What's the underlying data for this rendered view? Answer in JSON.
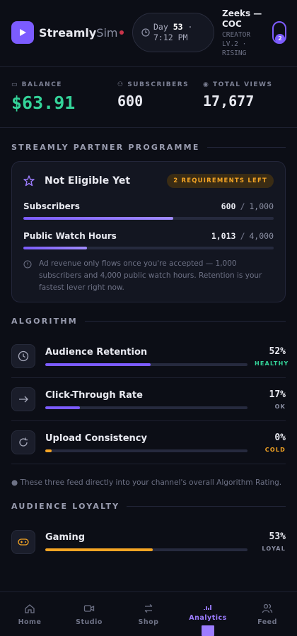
{
  "header": {
    "brand": "Streamly",
    "brand_suffix": "Sim",
    "day_label": "Day",
    "day": 53,
    "time": "· 7:12 PM",
    "user": "Zeeks — COC",
    "rank": "CREATOR LV.2 · RISING",
    "badge": 2
  },
  "stats": [
    {
      "label": "BALANCE",
      "value": "$63.91"
    },
    {
      "label": "SUBSCRIBERS",
      "value": 600
    },
    {
      "label": "TOTAL VIEWS",
      "value": "17,677"
    }
  ],
  "partner": {
    "title": "STREAMLY PARTNER PROGRAMME",
    "status": "Not Eligible Yet",
    "badge": "2 REQUIREMENTS LEFT",
    "requirements": [
      {
        "name": "Subscribers",
        "current": 600,
        "separator": "/",
        "target": {
          "value": 1000,
          "label": "1,000"
        }
      },
      {
        "name": "Public Watch Hours",
        "current": {
          "value": 1013,
          "label": "1,013"
        },
        "separator": "/",
        "target": {
          "value": 4000,
          "label": "4,000"
        }
      }
    ],
    "note": "Ad revenue only flows once you're accepted — 1,000 subscribers and 4,000 public watch hours. Retention is your fastest lever right now."
  },
  "algorithm": {
    "title": "ALGORITHM",
    "items": [
      {
        "name": "Audience Retention",
        "value": 52,
        "value_label": "52%",
        "status": "HEALTHY",
        "color": "#7c5cff",
        "status_color": "#34d399"
      },
      {
        "name": "Click-Through Rate",
        "value": 17,
        "value_label": "17%",
        "status": "OK",
        "color": "#7c5cff",
        "status_color": "#8b8fa3"
      },
      {
        "name": "Upload Consistency",
        "value": 0,
        "value_label": "0%",
        "status": "COLD",
        "color": "#f5a524",
        "status_color": "#f5a524"
      }
    ],
    "note": "These three feed directly into your channel's overall Algorithm Rating."
  },
  "loyalty": {
    "title": "AUDIENCE LOYALTY",
    "items": [
      {
        "name": "Gaming",
        "value": 53,
        "value_label": "53%",
        "status": "LOYAL",
        "color": "#f5a524",
        "status_color": "#8b8fa3"
      }
    ]
  },
  "nav": {
    "items": [
      "Home",
      "Studio",
      "Shop",
      "Analytics",
      "Feed"
    ],
    "active": 3
  }
}
